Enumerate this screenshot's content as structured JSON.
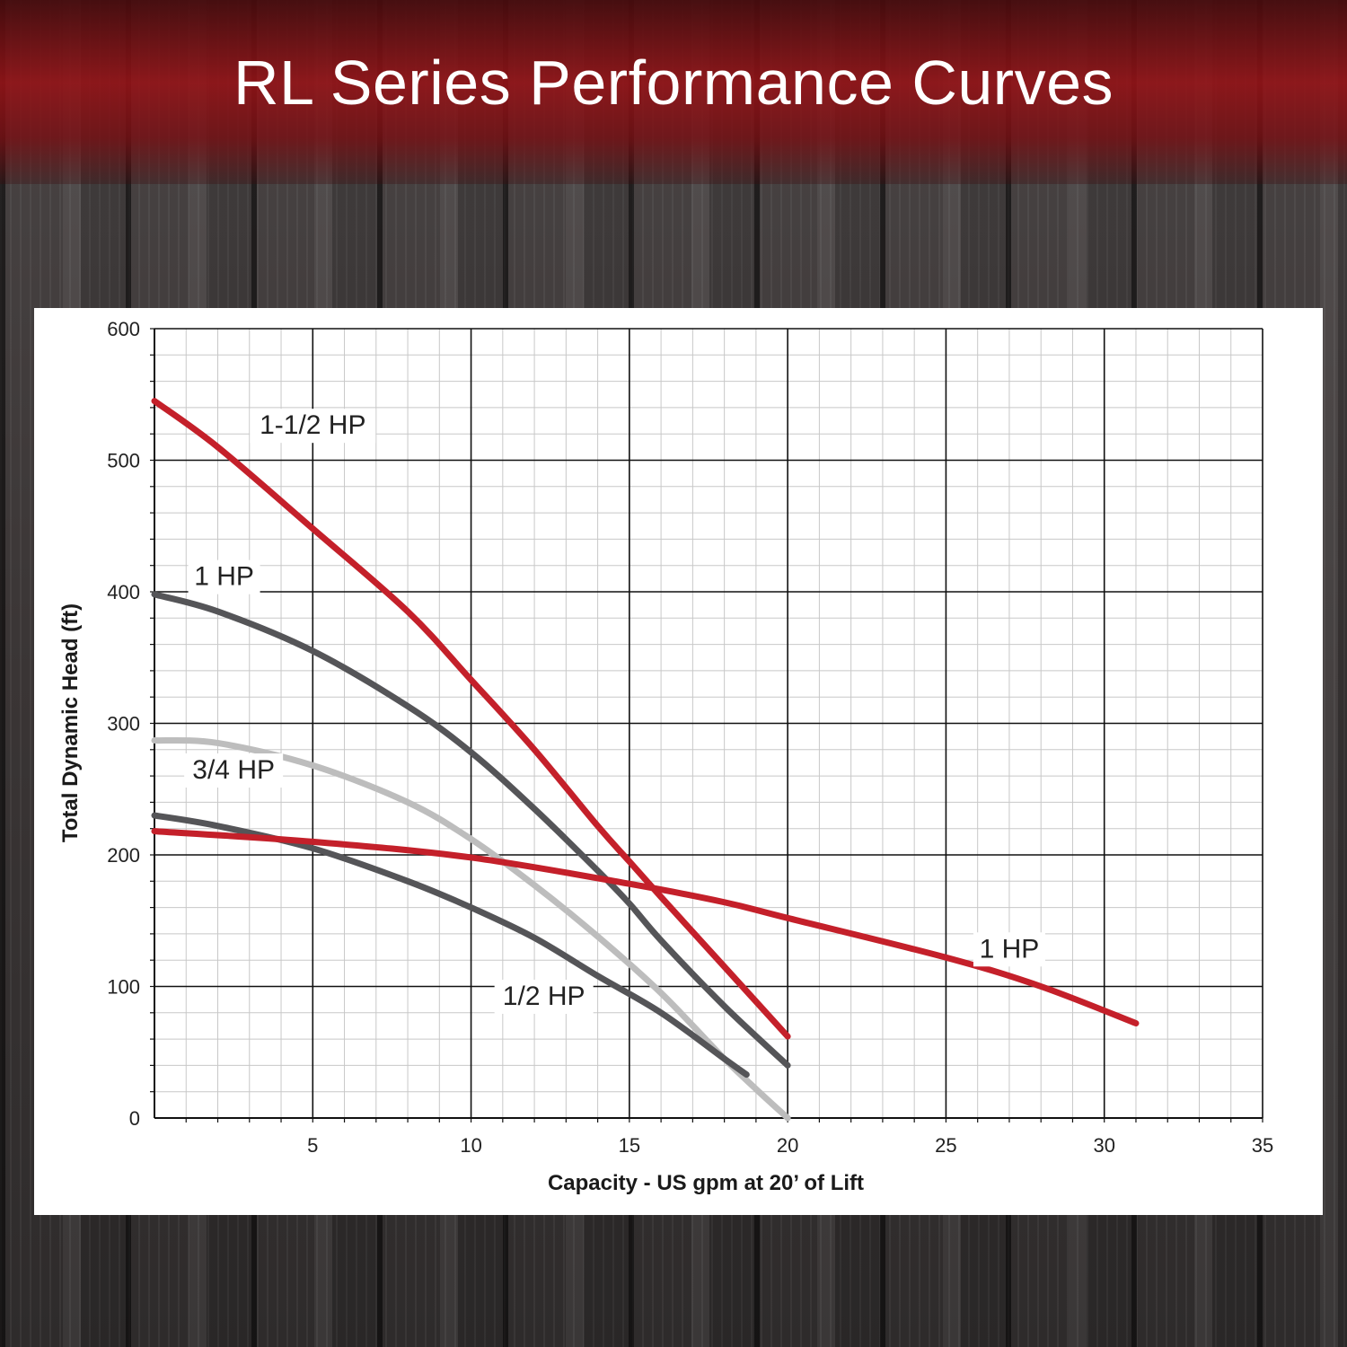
{
  "header": {
    "title": "RL Series Performance Curves",
    "banner_color": "#9c141a"
  },
  "chart_data": {
    "type": "line",
    "title": "",
    "xlabel": "Capacity - US gpm at 20’ of Lift",
    "ylabel": "Total Dynamic Head (ft)",
    "xlim": [
      0,
      35
    ],
    "ylim": [
      0,
      600
    ],
    "xticks": [
      "5",
      "10",
      "15",
      "20",
      "25",
      "30",
      "35"
    ],
    "yticks": [
      "0",
      "100",
      "200",
      "300",
      "400",
      "500",
      "600"
    ],
    "grid": true,
    "series": [
      {
        "name": "1-1/2 HP",
        "color": "#c4202a",
        "points": [
          [
            0,
            545
          ],
          [
            2,
            510
          ],
          [
            5,
            448
          ],
          [
            8,
            385
          ],
          [
            10,
            333
          ],
          [
            12,
            280
          ],
          [
            14,
            222
          ],
          [
            15,
            195
          ],
          [
            16,
            168
          ],
          [
            18,
            115
          ],
          [
            20,
            62
          ]
        ]
      },
      {
        "name": "1 HP",
        "color": "#555558",
        "points": [
          [
            0,
            398
          ],
          [
            2,
            385
          ],
          [
            5,
            355
          ],
          [
            8,
            313
          ],
          [
            10,
            278
          ],
          [
            12,
            235
          ],
          [
            14,
            188
          ],
          [
            15,
            163
          ],
          [
            16,
            135
          ],
          [
            18,
            85
          ],
          [
            20,
            40
          ]
        ]
      },
      {
        "name": "3/4 HP",
        "color": "#bdbdbd",
        "points": [
          [
            0,
            287
          ],
          [
            2,
            285
          ],
          [
            5,
            268
          ],
          [
            8,
            240
          ],
          [
            10,
            212
          ],
          [
            12,
            177
          ],
          [
            14,
            138
          ],
          [
            16,
            95
          ],
          [
            18,
            45
          ],
          [
            19,
            22
          ],
          [
            20,
            0
          ]
        ]
      },
      {
        "name": "1/2 HP",
        "color": "#555558",
        "points": [
          [
            0,
            230
          ],
          [
            2,
            222
          ],
          [
            5,
            205
          ],
          [
            8,
            180
          ],
          [
            10,
            160
          ],
          [
            12,
            137
          ],
          [
            14,
            108
          ],
          [
            16,
            80
          ],
          [
            18,
            45
          ],
          [
            18.7,
            33
          ]
        ]
      },
      {
        "name": "1 HP",
        "color": "#c4202a",
        "points": [
          [
            0,
            218
          ],
          [
            5,
            210
          ],
          [
            10,
            198
          ],
          [
            15,
            178
          ],
          [
            18,
            164
          ],
          [
            20,
            152
          ],
          [
            25,
            122
          ],
          [
            28,
            100
          ],
          [
            31,
            72
          ]
        ]
      }
    ],
    "curve_labels": [
      {
        "text": "1-1/2 HP",
        "x": 5,
        "y": 520
      },
      {
        "text": "1 HP",
        "x": 2.2,
        "y": 405
      },
      {
        "text": "3/4 HP",
        "x": 2.5,
        "y": 258
      },
      {
        "text": "1/2 HP",
        "x": 12.3,
        "y": 86
      },
      {
        "text": "1 HP",
        "x": 27,
        "y": 122
      }
    ]
  }
}
